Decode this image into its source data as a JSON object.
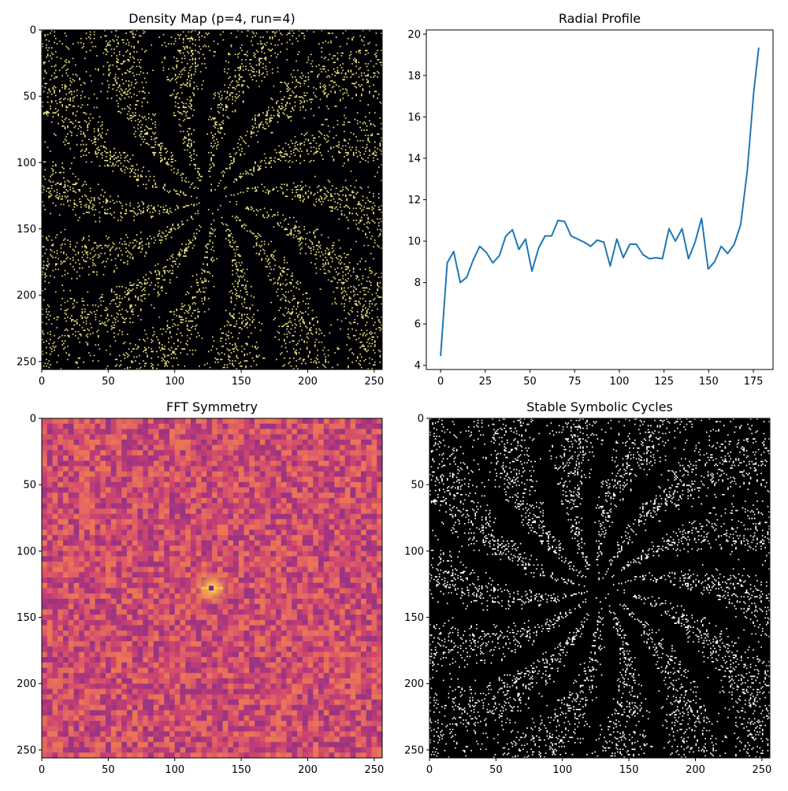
{
  "figure": {
    "panels": [
      {
        "id": "density",
        "title": "Density Map (p=4, run=4)"
      },
      {
        "id": "radial",
        "title": "Radial Profile"
      },
      {
        "id": "fft",
        "title": "FFT Symmetry"
      },
      {
        "id": "cycles",
        "title": "Stable Symbolic Cycles"
      }
    ]
  },
  "colors": {
    "density_background": "#000004",
    "density_points": "#e6e07a",
    "line": "#1f77b4",
    "fft_base": "#d9566b",
    "fft_dark": "#9b2e7e",
    "fft_bright": "#f9a84a",
    "cycles_background": "#000000",
    "cycles_points": "#ffffff"
  },
  "chart_data": [
    {
      "type": "heatmap",
      "title": "Density Map (p=4, run=4)",
      "xlim": [
        0,
        256
      ],
      "ylim": [
        256,
        0
      ],
      "x_ticks": [
        0,
        50,
        100,
        150,
        200,
        250
      ],
      "y_ticks": [
        0,
        50,
        100,
        150,
        200,
        250
      ],
      "colormap": "inferno",
      "spiral_arms": 14,
      "center": [
        128,
        128
      ]
    },
    {
      "type": "line",
      "title": "Radial Profile",
      "xlim": [
        -8,
        186
      ],
      "ylim": [
        3.8,
        20.2
      ],
      "x_ticks": [
        0,
        25,
        50,
        75,
        100,
        125,
        150,
        175
      ],
      "y_ticks": [
        4,
        6,
        8,
        10,
        12,
        14,
        16,
        18,
        20
      ],
      "grid": false,
      "x": [
        0,
        3.7,
        7.3,
        11,
        14.6,
        18.3,
        21.9,
        25.6,
        29.2,
        32.9,
        36.5,
        40.2,
        43.8,
        47.5,
        51.1,
        54.8,
        58.4,
        62.1,
        65.7,
        69.4,
        73,
        76.7,
        80.3,
        84,
        87.6,
        91.3,
        94.9,
        98.6,
        102.2,
        105.9,
        109.5,
        113.2,
        116.8,
        120.5,
        124.1,
        127.8,
        131.4,
        135.1,
        138.7,
        142.4,
        146,
        149.7,
        153.3,
        157,
        160.6,
        164.3,
        167.9,
        171.6,
        175.2,
        178
      ],
      "series": [
        {
          "values": [
            4.45,
            8.95,
            9.5,
            8.0,
            8.25,
            9.1,
            9.75,
            9.45,
            8.95,
            9.3,
            10.25,
            10.55,
            9.6,
            10.1,
            8.55,
            9.65,
            10.25,
            10.25,
            11.0,
            10.95,
            10.25,
            10.1,
            9.95,
            9.75,
            10.05,
            9.95,
            8.8,
            10.1,
            9.2,
            9.85,
            9.85,
            9.35,
            9.15,
            9.2,
            9.15,
            10.6,
            10.0,
            10.6,
            9.15,
            9.95,
            11.1,
            8.65,
            9.0,
            9.75,
            9.4,
            9.85,
            10.8,
            13.4,
            17.2,
            19.35
          ]
        }
      ]
    },
    {
      "type": "heatmap",
      "title": "FFT Symmetry",
      "xlim": [
        0,
        256
      ],
      "ylim": [
        256,
        0
      ],
      "x_ticks": [
        0,
        50,
        100,
        150,
        200,
        250
      ],
      "y_ticks": [
        0,
        50,
        100,
        150,
        200,
        250
      ],
      "colormap": "plasma",
      "peak": [
        128,
        128
      ]
    },
    {
      "type": "heatmap",
      "title": "Stable Symbolic Cycles",
      "xlim": [
        0,
        256
      ],
      "ylim": [
        256,
        0
      ],
      "x_ticks": [
        0,
        50,
        100,
        150,
        200,
        250
      ],
      "y_ticks": [
        0,
        50,
        100,
        150,
        200,
        250
      ],
      "colormap": "gray",
      "spiral_arms": 14,
      "center": [
        128,
        128
      ]
    }
  ]
}
